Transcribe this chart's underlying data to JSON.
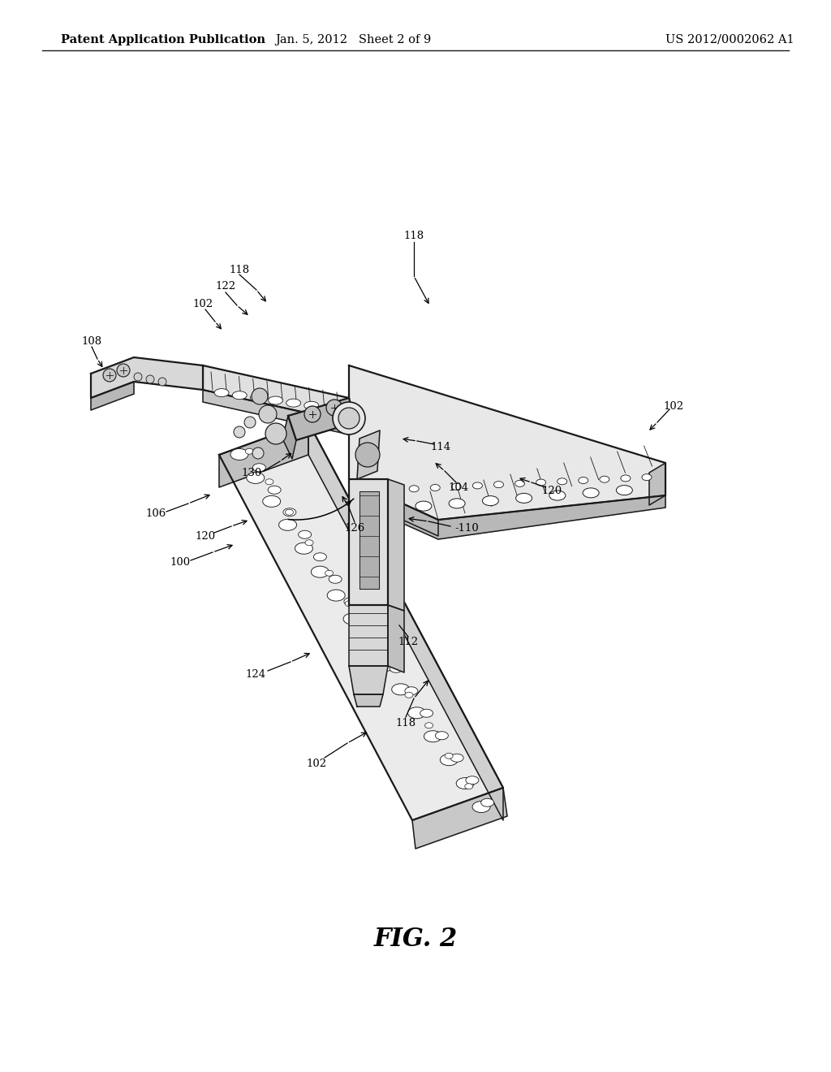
{
  "background_color": "#ffffff",
  "header_left": "Patent Application Publication",
  "header_center": "Jan. 5, 2012   Sheet 2 of 9",
  "header_right": "US 2012/0002062 A1",
  "figure_label": "FIG. 2",
  "header_fontsize": 10.5,
  "figure_label_fontsize": 22,
  "line_color": "#1a1a1a",
  "fill_light": "#f0f0f0",
  "fill_mid": "#d8d8d8",
  "fill_dark": "#b0b0b0",
  "fill_white": "#ffffff",
  "ref_fontsize": 9.5
}
